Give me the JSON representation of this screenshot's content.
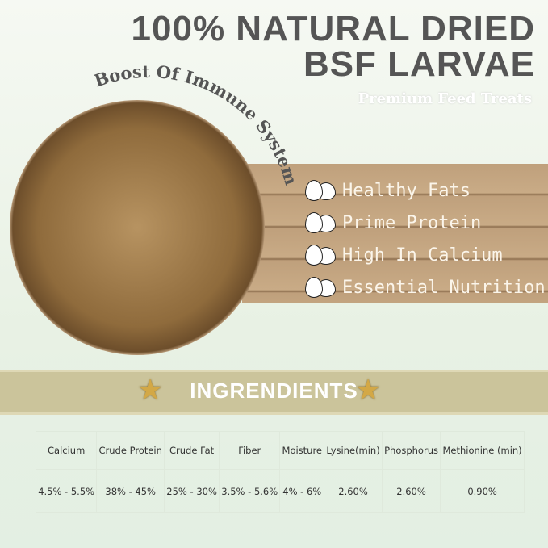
{
  "title_line1": "100% NATURAL DRIED",
  "title_line2": "BSF LARVAE",
  "subtitle": "Premium Feed Treats",
  "curved_text": "Boost Of Immune System",
  "features": [
    {
      "label": "Healthy Fats",
      "icon": "egg-icon"
    },
    {
      "label": "Prime Protein",
      "icon": "egg-icon"
    },
    {
      "label": "High In Calcium",
      "icon": "egg-icon"
    },
    {
      "label": "Essential Nutrition",
      "icon": "egg-icon"
    }
  ],
  "ingredients": {
    "heading": "INGRENDIENTS",
    "headers": [
      "Calcium",
      "Crude Protein",
      "Crude Fat",
      "Fiber",
      "Moisture",
      "Lysine(min)",
      "Phosphorus",
      "Methionine (min)"
    ],
    "values": [
      "4.5% - 5.5%",
      "38% - 45%",
      "25% - 30%",
      "3.5% - 5.6%",
      "4% - 6%",
      "2.60%",
      "2.60%",
      "0.90%"
    ]
  }
}
